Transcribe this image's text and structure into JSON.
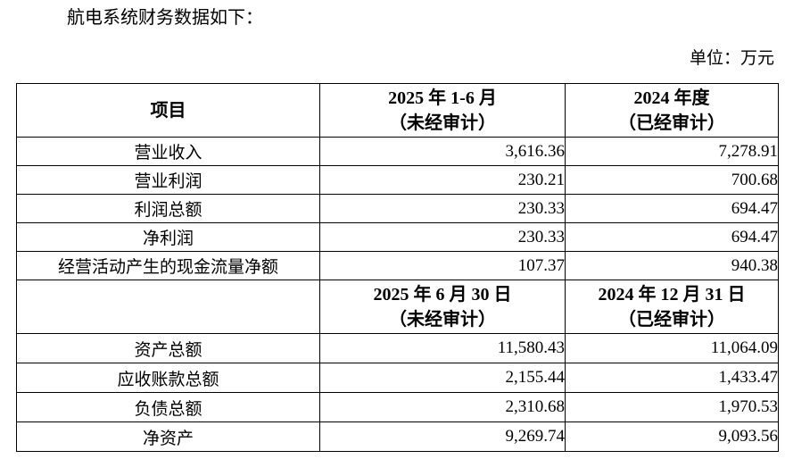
{
  "document": {
    "intro": "航电系统财务数据如下：",
    "unit_label": "单位：万元"
  },
  "table": {
    "income_header": {
      "item": "项目",
      "period_2025": [
        "2025 年 1-6 月",
        "（未经审计）"
      ],
      "period_2024": [
        "2024 年度",
        "（已经审计）"
      ]
    },
    "income_rows": [
      {
        "item": "营业收入",
        "v2025": "3,616.36",
        "v2024": "7,278.91"
      },
      {
        "item": "营业利润",
        "v2025": "230.21",
        "v2024": "700.68"
      },
      {
        "item": "利润总额",
        "v2025": "230.33",
        "v2024": "694.47"
      },
      {
        "item": "净利润",
        "v2025": "230.33",
        "v2024": "694.47"
      },
      {
        "item": "经营活动产生的现金流量净额",
        "v2025": "107.37",
        "v2024": "940.38"
      }
    ],
    "balance_header": {
      "item": "",
      "date_2025": [
        "2025 年 6 月 30 日",
        "（未经审计）"
      ],
      "date_2024": [
        "2024 年 12 月 31 日",
        "（已经审计）"
      ]
    },
    "balance_rows": [
      {
        "item": "资产总额",
        "v2025": "11,580.43",
        "v2024": "11,064.09"
      },
      {
        "item": "应收账款总额",
        "v2025": "2,155.44",
        "v2024": "1,433.47"
      },
      {
        "item": "负债总额",
        "v2025": "2,310.68",
        "v2024": "1,970.53"
      },
      {
        "item": "净资产",
        "v2025": "9,269.74",
        "v2024": "9,093.56"
      }
    ]
  }
}
